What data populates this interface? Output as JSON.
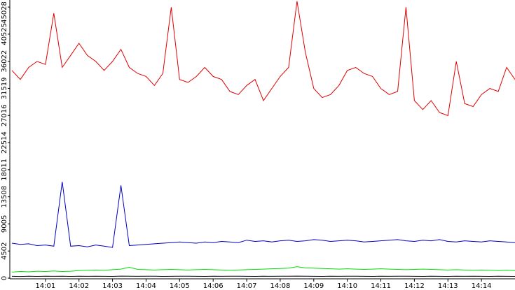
{
  "chart_data": {
    "type": "line",
    "x": [
      0,
      0.25,
      0.5,
      0.75,
      1,
      1.25,
      1.5,
      1.75,
      2,
      2.25,
      2.5,
      2.75,
      3,
      3.25,
      3.5,
      3.75,
      4,
      4.25,
      4.5,
      4.75,
      5,
      5.25,
      5.5,
      5.75,
      6,
      6.25,
      6.5,
      6.75,
      7,
      7.25,
      7.5,
      7.75,
      8,
      8.25,
      8.5,
      8.75,
      9,
      9.25,
      9.5,
      9.75,
      10,
      10.25,
      10.5,
      10.75,
      11,
      11.25,
      11.5,
      11.75,
      12,
      12.25,
      12.5,
      12.75,
      13,
      13.25,
      13.5,
      13.75,
      14,
      14.25,
      14.5,
      14.75,
      15
    ],
    "series": [
      {
        "color": "#e00000",
        "values": [
          34500,
          33000,
          35000,
          36000,
          35500,
          44000,
          35000,
          37000,
          39000,
          37000,
          36000,
          34500,
          36000,
          38000,
          35000,
          34000,
          33500,
          32000,
          34000,
          45000,
          33000,
          32500,
          33500,
          35000,
          33500,
          33000,
          31000,
          30500,
          32000,
          33000,
          29500,
          31500,
          33500,
          35000,
          46000,
          37500,
          31500,
          30000,
          30500,
          32000,
          34500,
          35000,
          34000,
          33500,
          31500,
          30500,
          31000,
          45000,
          29500,
          28000,
          29500,
          27500,
          27000,
          36000,
          29000,
          28500,
          30500,
          31500,
          31000,
          35000,
          33000
        ]
      },
      {
        "color": "#0000c0",
        "values": [
          5800,
          5600,
          5700,
          5400,
          5500,
          5300,
          16000,
          5300,
          5400,
          5200,
          5500,
          5300,
          5100,
          15400,
          5400,
          5500,
          5600,
          5700,
          5800,
          5900,
          6000,
          5900,
          5800,
          6000,
          5900,
          6100,
          6000,
          5900,
          6300,
          6100,
          6200,
          6000,
          6200,
          6300,
          6100,
          6200,
          6400,
          6300,
          6100,
          6200,
          6300,
          6200,
          6000,
          6100,
          6200,
          6300,
          6400,
          6200,
          6100,
          6300,
          6200,
          6400,
          6100,
          6000,
          6200,
          6100,
          6000,
          6200,
          6100,
          6000,
          5900
        ]
      },
      {
        "color": "#00e000",
        "values": [
          1000,
          1100,
          1050,
          1150,
          1100,
          1200,
          1100,
          1150,
          1250,
          1300,
          1350,
          1300,
          1400,
          1500,
          1800,
          1450,
          1400,
          1350,
          1400,
          1450,
          1400,
          1350,
          1400,
          1450,
          1400,
          1350,
          1300,
          1350,
          1400,
          1450,
          1500,
          1550,
          1600,
          1650,
          1900,
          1700,
          1650,
          1600,
          1550,
          1500,
          1550,
          1500,
          1450,
          1500,
          1550,
          1500,
          1450,
          1400,
          1450,
          1500,
          1450,
          1400,
          1350,
          1400,
          1350,
          1300,
          1350,
          1300,
          1250,
          1300,
          1250
        ]
      },
      {
        "color": "#000000",
        "values": [
          300,
          280,
          320,
          290,
          310,
          300,
          330,
          290,
          310,
          300,
          320,
          300,
          290,
          340,
          310,
          300,
          320,
          310,
          290,
          300,
          310,
          320,
          300,
          290,
          310,
          300,
          320,
          310,
          300,
          290,
          310,
          300,
          320,
          330,
          340,
          310,
          300,
          290,
          310,
          300,
          320,
          310,
          300,
          290,
          310,
          300,
          320,
          310,
          300,
          290,
          310,
          300,
          290,
          310,
          300,
          320,
          300,
          290,
          310,
          300,
          290
        ]
      }
    ],
    "xlim": [
      0,
      15
    ],
    "xticks": [
      {
        "value": 1,
        "label": "14:01"
      },
      {
        "value": 2,
        "label": "14:02"
      },
      {
        "value": 3,
        "label": "14:03"
      },
      {
        "value": 4,
        "label": "14:04"
      },
      {
        "value": 5,
        "label": "14:05"
      },
      {
        "value": 6,
        "label": "14:06"
      },
      {
        "value": 7,
        "label": "14:07"
      },
      {
        "value": 8,
        "label": "14:08"
      },
      {
        "value": 9,
        "label": "14:09"
      },
      {
        "value": 10,
        "label": "14:10"
      },
      {
        "value": 11,
        "label": "14:11"
      },
      {
        "value": 12,
        "label": "14:12"
      },
      {
        "value": 13,
        "label": "14:13"
      },
      {
        "value": 14,
        "label": "14:14"
      }
    ],
    "ylim": [
      0,
      46200
    ],
    "yticks": [
      0,
      4502,
      9005,
      13508,
      18011,
      22514,
      27016,
      31519,
      36022,
      40525,
      45028
    ]
  }
}
